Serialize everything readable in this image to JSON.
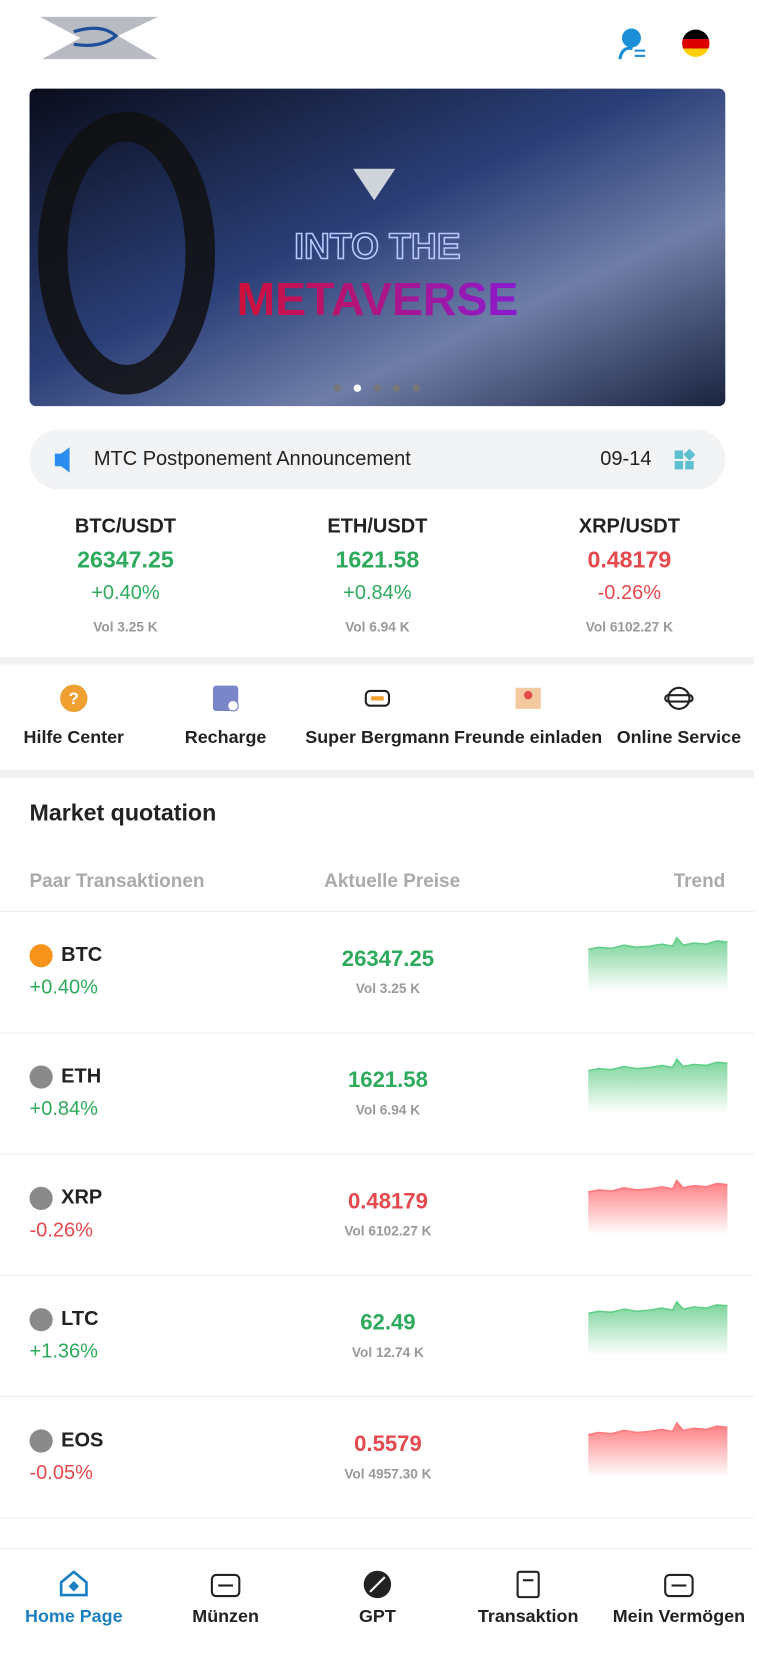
{
  "banner": {
    "line1": "INTO THE",
    "line2": "METAVERSE"
  },
  "announcement": {
    "text": "MTC Postponement Announcement",
    "date": "09-14"
  },
  "tickers": [
    {
      "pair": "BTC/USDT",
      "price": "26347.25",
      "change": "+0.40%",
      "vol": "Vol 3.25 K",
      "up": true
    },
    {
      "pair": "ETH/USDT",
      "price": "1621.58",
      "change": "+0.84%",
      "vol": "Vol 6.94 K",
      "up": true
    },
    {
      "pair": "XRP/USDT",
      "price": "0.48179",
      "change": "-0.26%",
      "vol": "Vol 6102.27 K",
      "up": false
    }
  ],
  "shortcuts": [
    "Hilfe Center",
    "Recharge",
    "Super Bergmann",
    "Freunde einladen",
    "Online Service"
  ],
  "market": {
    "title": "Market quotation",
    "headers": [
      "Paar Transaktionen",
      "Aktuelle Preise",
      "Trend"
    ],
    "rows": [
      {
        "symbol": "BTC",
        "change": "+0.40%",
        "price": "26347.25",
        "vol": "Vol 3.25 K",
        "up": true
      },
      {
        "symbol": "ETH",
        "change": "+0.84%",
        "price": "1621.58",
        "vol": "Vol 6.94 K",
        "up": true
      },
      {
        "symbol": "XRP",
        "change": "-0.26%",
        "price": "0.48179",
        "vol": "Vol 6102.27 K",
        "up": false
      },
      {
        "symbol": "LTC",
        "change": "+1.36%",
        "price": "62.49",
        "vol": "Vol 12.74 K",
        "up": true
      },
      {
        "symbol": "EOS",
        "change": "-0.05%",
        "price": "0.5579",
        "vol": "Vol 4957.30 K",
        "up": false
      }
    ]
  },
  "nav": {
    "items": [
      "Home Page",
      "Münzen",
      "GPT",
      "Transaktion",
      "Mein Vermögen"
    ],
    "active": 0
  }
}
